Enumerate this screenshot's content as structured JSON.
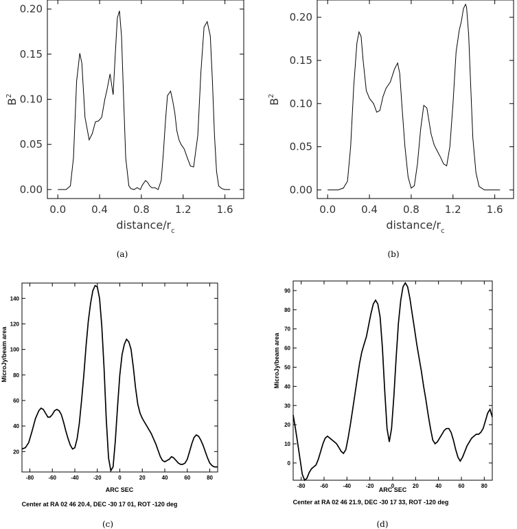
{
  "chart_data": [
    {
      "id": "a",
      "type": "line",
      "panel_label": "(a)",
      "ylabel": "B",
      "ylabel_sup": "2",
      "xlabel": "distance/r",
      "xlabel_sub": "c",
      "xlim": [
        -0.1,
        1.78
      ],
      "ylim": [
        -0.01,
        0.21
      ],
      "xticks": [
        "0.0",
        "0.4",
        "0.8",
        "1.2",
        "1.6"
      ],
      "yticks": [
        "0.00",
        "0.05",
        "0.10",
        "0.15",
        "0.20"
      ],
      "series": [
        {
          "x": [
            0.0,
            0.08,
            0.12,
            0.15,
            0.18,
            0.21,
            0.23,
            0.26,
            0.3,
            0.33,
            0.36,
            0.39,
            0.42,
            0.45,
            0.47,
            0.5,
            0.53,
            0.55,
            0.57,
            0.59,
            0.61,
            0.63,
            0.65,
            0.68,
            0.7,
            0.73,
            0.76,
            0.79,
            0.81,
            0.84,
            0.86,
            0.88,
            0.9,
            0.93,
            0.96,
            0.99,
            1.01,
            1.03,
            1.05,
            1.08,
            1.1,
            1.12,
            1.14,
            1.16,
            1.18,
            1.21,
            1.24,
            1.27,
            1.3,
            1.34,
            1.37,
            1.4,
            1.43,
            1.46,
            1.48,
            1.5,
            1.52,
            1.54,
            1.57,
            1.6,
            1.65
          ],
          "y": [
            0.0,
            0.0,
            0.004,
            0.035,
            0.12,
            0.151,
            0.14,
            0.08,
            0.055,
            0.062,
            0.075,
            0.076,
            0.08,
            0.1,
            0.11,
            0.128,
            0.105,
            0.15,
            0.19,
            0.198,
            0.17,
            0.1,
            0.035,
            0.004,
            0.001,
            0.0,
            0.002,
            0.0,
            0.005,
            0.01,
            0.008,
            0.004,
            0.002,
            0.002,
            0.0,
            0.01,
            0.04,
            0.075,
            0.104,
            0.109,
            0.098,
            0.085,
            0.065,
            0.055,
            0.05,
            0.045,
            0.035,
            0.026,
            0.025,
            0.06,
            0.13,
            0.18,
            0.186,
            0.17,
            0.12,
            0.06,
            0.02,
            0.004,
            0.001,
            0.0,
            0.0
          ]
        }
      ]
    },
    {
      "id": "b",
      "type": "line",
      "panel_label": "(b)",
      "ylabel": "B",
      "ylabel_sup": "2",
      "xlabel": "distance/r",
      "xlabel_sub": "c",
      "xlim": [
        -0.1,
        1.78
      ],
      "ylim": [
        -0.01,
        0.22
      ],
      "xticks": [
        "0.0",
        "0.4",
        "0.8",
        "1.2",
        "1.6"
      ],
      "yticks": [
        "0.00",
        "0.05",
        "0.10",
        "0.15",
        "0.20"
      ],
      "series": [
        {
          "x": [
            0.0,
            0.1,
            0.15,
            0.19,
            0.22,
            0.25,
            0.28,
            0.3,
            0.32,
            0.34,
            0.37,
            0.4,
            0.44,
            0.47,
            0.5,
            0.53,
            0.56,
            0.6,
            0.64,
            0.67,
            0.69,
            0.71,
            0.74,
            0.77,
            0.8,
            0.83,
            0.86,
            0.89,
            0.92,
            0.95,
            0.97,
            0.99,
            1.02,
            1.05,
            1.08,
            1.11,
            1.14,
            1.17,
            1.2,
            1.23,
            1.26,
            1.28,
            1.3,
            1.32,
            1.33,
            1.35,
            1.37,
            1.39,
            1.42,
            1.45,
            1.5,
            1.55,
            1.65
          ],
          "y": [
            0.0,
            0.0,
            0.002,
            0.01,
            0.05,
            0.12,
            0.17,
            0.183,
            0.178,
            0.15,
            0.115,
            0.106,
            0.1,
            0.09,
            0.092,
            0.108,
            0.118,
            0.125,
            0.14,
            0.147,
            0.135,
            0.1,
            0.05,
            0.015,
            0.002,
            0.005,
            0.03,
            0.07,
            0.098,
            0.095,
            0.08,
            0.065,
            0.052,
            0.045,
            0.038,
            0.03,
            0.028,
            0.05,
            0.1,
            0.16,
            0.185,
            0.195,
            0.21,
            0.215,
            0.212,
            0.18,
            0.12,
            0.06,
            0.02,
            0.004,
            0.0,
            0.0,
            0.0
          ]
        }
      ]
    },
    {
      "id": "c",
      "type": "line",
      "panel_label": "(c)",
      "ylabel": "MicroJy/beam area",
      "xlabel": "ARC SEC",
      "caption": "Center at RA 02 46 20.4,  DEC -30 17 01, ROT -120 deg",
      "xlim": [
        -87,
        87
      ],
      "ylim": [
        4,
        152
      ],
      "xticks": [
        -80,
        -60,
        -40,
        -20,
        0,
        20,
        40,
        60,
        80
      ],
      "yticks": [
        20,
        40,
        60,
        80,
        100,
        120,
        140
      ],
      "series": [
        {
          "x": [
            -87,
            -84,
            -81,
            -78,
            -75,
            -72,
            -70,
            -68,
            -66,
            -64,
            -62,
            -60,
            -58,
            -56,
            -54,
            -52,
            -50,
            -48,
            -46,
            -44,
            -42,
            -40,
            -38,
            -36,
            -34,
            -32,
            -30,
            -28,
            -26,
            -24,
            -22,
            -20,
            -18,
            -16,
            -14,
            -12,
            -10,
            -8,
            -6,
            -4,
            -2,
            0,
            2,
            4,
            6,
            8,
            10,
            12,
            14,
            16,
            18,
            20,
            22,
            24,
            26,
            28,
            30,
            32,
            34,
            36,
            38,
            40,
            42,
            44,
            46,
            48,
            50,
            52,
            54,
            56,
            58,
            60,
            62,
            64,
            66,
            68,
            70,
            72,
            74,
            76,
            78,
            80,
            82,
            84,
            87
          ],
          "y": [
            22,
            23,
            27,
            36,
            46,
            52,
            54,
            53,
            50,
            47,
            47,
            49,
            52,
            53,
            52,
            49,
            43,
            36,
            30,
            25,
            22,
            23,
            30,
            42,
            60,
            80,
            103,
            122,
            136,
            146,
            150,
            149,
            140,
            118,
            85,
            45,
            15,
            5,
            8,
            28,
            55,
            80,
            96,
            104,
            108,
            106,
            100,
            86,
            70,
            57,
            50,
            46,
            43,
            40,
            37,
            34,
            30,
            26,
            21,
            16,
            13,
            12,
            13,
            14,
            16,
            15,
            13,
            11,
            10,
            10,
            11,
            14,
            20,
            26,
            31,
            33,
            32,
            29,
            25,
            20,
            15,
            11,
            9,
            8,
            8
          ]
        }
      ]
    },
    {
      "id": "d",
      "type": "line",
      "panel_label": "(d)",
      "ylabel": "MicroJy/beam area",
      "xlabel": "ARC SEC",
      "caption": "Center at RA 02 46 21.9,  DEC -30 17 33, ROT -120 deg",
      "xlim": [
        -87,
        87
      ],
      "ylim": [
        -9,
        95
      ],
      "xticks": [
        -80,
        -60,
        -40,
        -20,
        0,
        20,
        40,
        60,
        80
      ],
      "yticks": [
        0,
        10,
        20,
        30,
        40,
        50,
        60,
        70,
        80,
        90
      ],
      "series": [
        {
          "x": [
            -87,
            -85,
            -83,
            -81,
            -79,
            -77,
            -75,
            -73,
            -71,
            -69,
            -67,
            -65,
            -63,
            -61,
            -59,
            -57,
            -55,
            -53,
            -51,
            -49,
            -47,
            -45,
            -43,
            -41,
            -39,
            -37,
            -35,
            -33,
            -31,
            -29,
            -27,
            -25,
            -23,
            -21,
            -19,
            -17,
            -15,
            -13,
            -11,
            -9,
            -7,
            -5,
            -3,
            -1,
            1,
            3,
            5,
            7,
            9,
            11,
            13,
            15,
            17,
            19,
            21,
            23,
            25,
            27,
            29,
            31,
            33,
            35,
            37,
            39,
            41,
            43,
            45,
            47,
            49,
            51,
            53,
            55,
            57,
            59,
            61,
            63,
            65,
            67,
            69,
            71,
            73,
            75,
            77,
            79,
            81,
            83,
            85,
            87
          ],
          "y": [
            25,
            18,
            10,
            2,
            -6,
            -9,
            -8,
            -5,
            -3,
            -2,
            -1,
            2,
            6,
            10,
            13,
            14,
            13,
            12,
            11,
            10,
            8,
            6,
            5,
            7,
            13,
            20,
            28,
            36,
            44,
            52,
            58,
            62,
            66,
            72,
            78,
            83,
            85,
            83,
            76,
            60,
            38,
            18,
            11,
            18,
            35,
            55,
            73,
            85,
            92,
            94,
            92,
            86,
            78,
            70,
            62,
            55,
            48,
            40,
            33,
            25,
            18,
            12,
            10,
            11,
            13,
            15,
            17,
            18,
            18,
            16,
            12,
            7,
            3,
            1,
            3,
            6,
            9,
            11,
            13,
            14,
            15,
            15,
            16,
            18,
            22,
            26,
            28,
            24
          ]
        }
      ]
    }
  ]
}
